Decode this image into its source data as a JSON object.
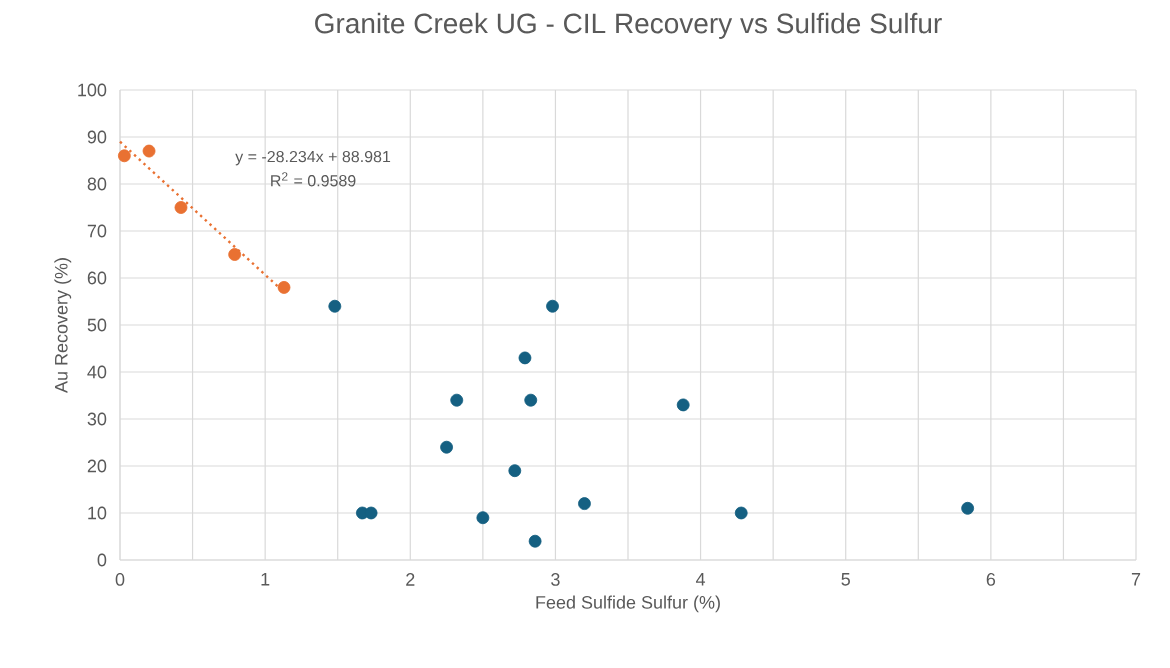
{
  "chart_data": {
    "type": "scatter",
    "title": "Granite Creek UG - CIL Recovery vs Sulfide Sulfur",
    "xlabel": "Feed Sulfide Sulfur (%)",
    "ylabel": "Au Recovery (%)",
    "series": [
      {
        "color": "#e97132",
        "x": [
          0.03,
          0.2,
          0.42,
          0.79,
          1.13
        ],
        "values": [
          86,
          87,
          75,
          65,
          58
        ]
      },
      {
        "color": "#156082",
        "x": [
          1.48,
          2.98,
          2.79,
          2.32,
          2.83,
          2.25,
          2.72,
          1.67,
          1.73,
          2.5,
          2.86,
          3.2,
          3.88,
          4.28,
          5.84
        ],
        "values": [
          54,
          54,
          43,
          34,
          34,
          24,
          19,
          10,
          10,
          9,
          4,
          12,
          33,
          10,
          11
        ]
      },
      {
        "type": "line",
        "color": "#e97132",
        "line_style": "dotted",
        "marker": "none",
        "x": [
          0,
          1.13
        ],
        "values": [
          89,
          57
        ]
      }
    ],
    "annotations": [
      "y = -28.234x + 88.981",
      "R$^{2}$ = 0.9589"
    ],
    "marker": "circle",
    "xlim": [
      0,
      7
    ],
    "ylim": [
      0,
      100
    ],
    "xticks": [
      0,
      {
        "value": 0.5,
        "label": null
      },
      1,
      {
        "value": 1.5,
        "label": null
      },
      2,
      {
        "value": 2.5,
        "label": null
      },
      3,
      {
        "value": 3.5,
        "label": null
      },
      4,
      {
        "value": 4.5,
        "label": null
      },
      5,
      {
        "value": 5.5,
        "label": null
      },
      6,
      {
        "value": 6.5,
        "label": null
      },
      7
    ],
    "yticks": [
      0,
      10,
      20,
      30,
      40,
      50,
      60,
      70,
      80,
      90,
      100
    ],
    "grid": true
  }
}
